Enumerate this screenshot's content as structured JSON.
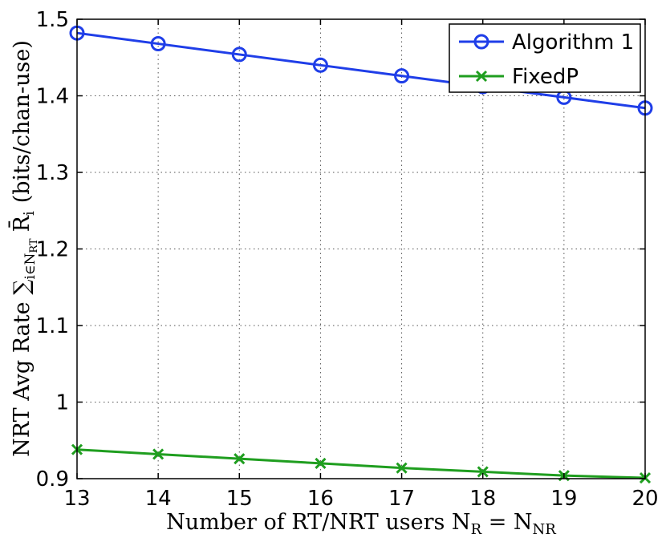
{
  "chart_data": {
    "type": "line",
    "x": [
      13,
      14,
      15,
      16,
      17,
      18,
      19,
      20
    ],
    "series": [
      {
        "name": "Algorithm 1",
        "values": [
          1.482,
          1.468,
          1.454,
          1.44,
          1.426,
          1.412,
          1.398,
          1.384
        ],
        "color": "#1f3ee8",
        "marker": "circle"
      },
      {
        "name": "FixedP",
        "values": [
          0.938,
          0.932,
          0.926,
          0.92,
          0.914,
          0.909,
          0.904,
          0.901
        ],
        "color": "#1f9e1f",
        "marker": "x"
      }
    ],
    "xlim": [
      13,
      20
    ],
    "ylim": [
      0.9,
      1.5
    ],
    "xticks": [
      "13",
      "14",
      "15",
      "16",
      "17",
      "18",
      "19",
      "20"
    ],
    "yticks": [
      "0.9",
      "1",
      "1.1",
      "1.2",
      "1.3",
      "1.4",
      "1.5"
    ],
    "xlabel": "Number of RT/NRT users N",
    "xlabel_sub_1": "R",
    "xlabel_eq": " = N",
    "xlabel_sub_2": "NR",
    "ylabel": "NRT Avg Rate ∑",
    "ylabel_sub": "i∈N",
    "ylabel_sub_2": "RT",
    "ylabel_symbol": "R̄",
    "ylabel_symbol_sub": "i",
    "ylabel_unit": "(bits/chan-use)",
    "grid": true,
    "legend_position": "top-right"
  }
}
